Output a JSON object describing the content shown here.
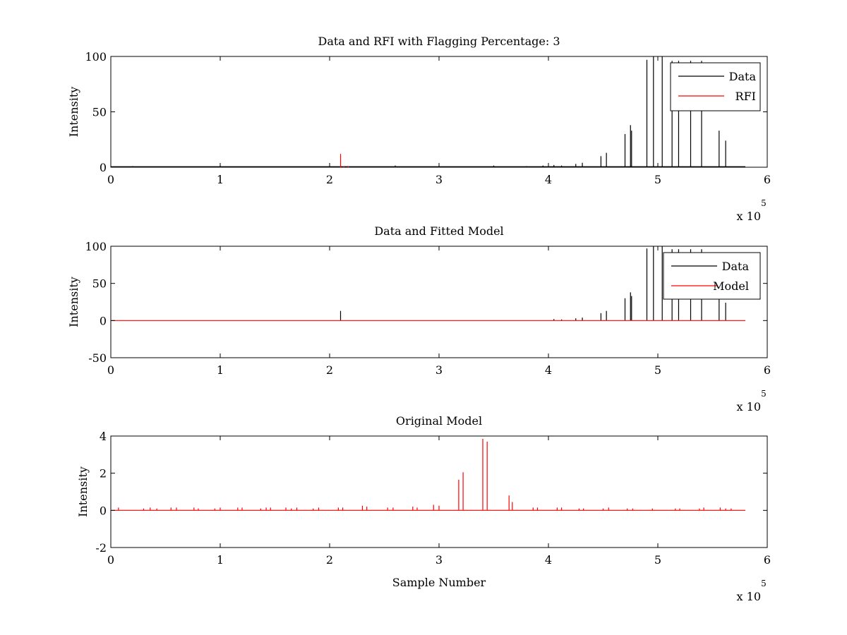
{
  "figure": {
    "colors": {
      "data": "#000000",
      "rfi": "#ff0000",
      "model": "#ff0000",
      "axes": "#000000",
      "background": "#ffffff"
    }
  },
  "chart_data": [
    {
      "type": "line",
      "title": "Data and RFI with Flagging Percentage: 3",
      "xlabel": "",
      "ylabel": "Intensity",
      "xlim": [
        0,
        600000
      ],
      "ylim": [
        0,
        100
      ],
      "xticks": [
        "0",
        "1",
        "2",
        "3",
        "4",
        "5",
        "6"
      ],
      "yticks": [
        "0",
        "50",
        "100"
      ],
      "x_exponent_label": "x 10",
      "x_exponent_power": "5",
      "grid": false,
      "legend": {
        "placement": "top-right",
        "entries": [
          "Data",
          "RFI"
        ]
      },
      "series": [
        {
          "name": "Data",
          "color": "#000000",
          "baseline": 0.5,
          "spikes": [
            [
              20000,
              1
            ],
            [
              100000,
              1.5
            ],
            [
              200000,
              1
            ],
            [
              260000,
              1.5
            ],
            [
              300000,
              1
            ],
            [
              350000,
              1.5
            ],
            [
              380000,
              1
            ],
            [
              395000,
              1.5
            ],
            [
              405000,
              2
            ],
            [
              412000,
              1.5
            ],
            [
              425000,
              3
            ],
            [
              431000,
              4
            ],
            [
              448000,
              10
            ],
            [
              453000,
              13
            ],
            [
              470000,
              30
            ],
            [
              475000,
              38
            ],
            [
              476000,
              33
            ],
            [
              490000,
              97
            ],
            [
              496000,
              100
            ],
            [
              504000,
              100
            ],
            [
              513000,
              96
            ],
            [
              519000,
              96
            ],
            [
              530000,
              96
            ],
            [
              540000,
              96
            ],
            [
              556000,
              33
            ],
            [
              562000,
              24
            ]
          ]
        },
        {
          "name": "RFI",
          "color": "#ff0000",
          "baseline": null,
          "spikes": [
            [
              210000,
              12
            ],
            [
              213000,
              1
            ],
            [
              217000,
              1
            ]
          ]
        }
      ]
    },
    {
      "type": "line",
      "title": "Data and Fitted Model",
      "xlabel": "",
      "ylabel": "Intensity",
      "xlim": [
        0,
        600000
      ],
      "ylim": [
        -50,
        100
      ],
      "xticks": [
        "0",
        "1",
        "2",
        "3",
        "4",
        "5",
        "6"
      ],
      "yticks": [
        "-50",
        "0",
        "50",
        "100"
      ],
      "x_exponent_label": "x 10",
      "x_exponent_power": "5",
      "grid": false,
      "legend": {
        "placement": "top-right",
        "entries": [
          "Data",
          "Model"
        ]
      },
      "series": [
        {
          "name": "Data",
          "color": "#000000",
          "baseline": null,
          "spikes": [
            [
              210000,
              13
            ],
            [
              405000,
              2
            ],
            [
              412000,
              1.5
            ],
            [
              425000,
              3
            ],
            [
              431000,
              4
            ],
            [
              448000,
              10
            ],
            [
              453000,
              13
            ],
            [
              470000,
              30
            ],
            [
              475000,
              38
            ],
            [
              476000,
              33
            ],
            [
              490000,
              97
            ],
            [
              496000,
              100
            ],
            [
              504000,
              100
            ],
            [
              513000,
              96
            ],
            [
              519000,
              96
            ],
            [
              530000,
              96
            ],
            [
              540000,
              96
            ],
            [
              556000,
              33
            ],
            [
              562000,
              24
            ]
          ]
        },
        {
          "name": "Model",
          "color": "#ff0000",
          "baseline": 0,
          "spikes": []
        }
      ]
    },
    {
      "type": "line",
      "title": "Original Model",
      "xlabel": "Sample Number",
      "ylabel": "Intensity",
      "xlim": [
        0,
        600000
      ],
      "ylim": [
        -2,
        4
      ],
      "xticks": [
        "0",
        "1",
        "2",
        "3",
        "4",
        "5",
        "6"
      ],
      "yticks": [
        "-2",
        "0",
        "2",
        "4"
      ],
      "x_exponent_label": "x 10",
      "x_exponent_power": "5",
      "grid": false,
      "legend": null,
      "series": [
        {
          "name": "",
          "color": "#ff0000",
          "baseline": 0,
          "spikes": [
            [
              7000,
              0.15
            ],
            [
              30000,
              0.1
            ],
            [
              36000,
              0.15
            ],
            [
              42000,
              0.1
            ],
            [
              55000,
              0.15
            ],
            [
              60000,
              0.15
            ],
            [
              76000,
              0.15
            ],
            [
              80000,
              0.1
            ],
            [
              95000,
              0.1
            ],
            [
              100000,
              0.15
            ],
            [
              116000,
              0.15
            ],
            [
              120000,
              0.15
            ],
            [
              137000,
              0.1
            ],
            [
              142000,
              0.15
            ],
            [
              146000,
              0.15
            ],
            [
              160000,
              0.15
            ],
            [
              165000,
              0.1
            ],
            [
              170000,
              0.15
            ],
            [
              185000,
              0.1
            ],
            [
              190000,
              0.15
            ],
            [
              208000,
              0.15
            ],
            [
              212000,
              0.15
            ],
            [
              230000,
              0.25
            ],
            [
              234000,
              0.2
            ],
            [
              253000,
              0.15
            ],
            [
              258000,
              0.15
            ],
            [
              276000,
              0.2
            ],
            [
              280000,
              0.15
            ],
            [
              295000,
              0.3
            ],
            [
              300000,
              0.25
            ],
            [
              318000,
              1.65
            ],
            [
              322000,
              2.05
            ],
            [
              340000,
              3.85
            ],
            [
              344000,
              3.7
            ],
            [
              364000,
              0.8
            ],
            [
              367000,
              0.45
            ],
            [
              386000,
              0.15
            ],
            [
              390000,
              0.15
            ],
            [
              408000,
              0.15
            ],
            [
              412000,
              0.15
            ],
            [
              428000,
              0.1
            ],
            [
              432000,
              0.1
            ],
            [
              450000,
              0.1
            ],
            [
              455000,
              0.15
            ],
            [
              472000,
              0.1
            ],
            [
              477000,
              0.1
            ],
            [
              495000,
              0.1
            ],
            [
              516000,
              0.1
            ],
            [
              520000,
              0.1
            ],
            [
              538000,
              0.1
            ],
            [
              542000,
              0.15
            ],
            [
              557000,
              0.15
            ],
            [
              562000,
              0.1
            ],
            [
              567000,
              0.1
            ]
          ]
        }
      ]
    }
  ]
}
